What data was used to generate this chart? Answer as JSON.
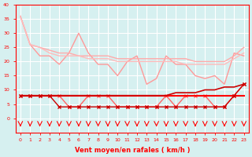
{
  "x": [
    0,
    1,
    2,
    3,
    4,
    5,
    6,
    7,
    8,
    9,
    10,
    11,
    12,
    13,
    14,
    15,
    16,
    17,
    18,
    19,
    20,
    21,
    22,
    23
  ],
  "series": [
    {
      "name": "max_rafales",
      "color": "#ff9999",
      "linewidth": 1.0,
      "marker": null,
      "values": [
        36,
        26,
        22,
        22,
        19,
        23,
        30,
        23,
        19,
        19,
        15,
        20,
        22,
        12,
        14,
        22,
        19,
        19,
        15,
        14,
        15,
        12,
        23,
        22
      ]
    },
    {
      "name": "moy_rafales_top",
      "color": "#ffaaaa",
      "linewidth": 1.0,
      "marker": null,
      "values": [
        36,
        26,
        25,
        24,
        23,
        23,
        22,
        22,
        22,
        22,
        21,
        21,
        21,
        21,
        21,
        21,
        21,
        21,
        20,
        20,
        20,
        20,
        22,
        25
      ]
    },
    {
      "name": "moy_rafales_smooth",
      "color": "#ffbbbb",
      "linewidth": 1.0,
      "marker": null,
      "values": [
        36,
        26,
        25,
        23,
        22,
        22,
        22,
        21,
        21,
        21,
        20,
        20,
        20,
        20,
        20,
        20,
        20,
        19,
        19,
        19,
        19,
        19,
        21,
        23
      ]
    },
    {
      "name": "vent_moyen_marker",
      "color": "#ff6666",
      "linewidth": 1.0,
      "marker": "x",
      "markersize": 3,
      "values": [
        8,
        8,
        8,
        8,
        8,
        4,
        4,
        8,
        8,
        8,
        4,
        4,
        4,
        4,
        4,
        8,
        4,
        8,
        8,
        8,
        4,
        4,
        8,
        12
      ]
    },
    {
      "name": "vent_moyen_flat",
      "color": "#ff0000",
      "linewidth": 1.5,
      "marker": null,
      "values": [
        8,
        8,
        8,
        8,
        8,
        8,
        8,
        8,
        8,
        8,
        8,
        8,
        8,
        8,
        8,
        8,
        8,
        8,
        8,
        8,
        8,
        8,
        8,
        8
      ]
    },
    {
      "name": "vent_moyen_trend",
      "color": "#cc0000",
      "linewidth": 1.2,
      "marker": null,
      "values": [
        8,
        8,
        8,
        8,
        8,
        8,
        8,
        8,
        8,
        8,
        8,
        8,
        8,
        8,
        8,
        8,
        9,
        9,
        9,
        10,
        10,
        11,
        11,
        12
      ]
    },
    {
      "name": "vent_min_marker",
      "color": "#cc0000",
      "linewidth": 1.0,
      "marker": "x",
      "markersize": 3,
      "values": [
        8,
        8,
        8,
        8,
        4,
        4,
        4,
        4,
        4,
        4,
        4,
        4,
        4,
        4,
        4,
        4,
        4,
        4,
        4,
        4,
        4,
        4,
        8,
        12
      ]
    }
  ],
  "wind_arrows": [
    0,
    1,
    2,
    3,
    4,
    5,
    6,
    7,
    8,
    9,
    10,
    11,
    12,
    13,
    14,
    15,
    16,
    17,
    18,
    19,
    20,
    21,
    22,
    23
  ],
  "xlabel": "Vent moyen/en rafales ( km/h )",
  "ylabel": "",
  "xlim": [
    -0.5,
    23.5
  ],
  "ylim": [
    0,
    40
  ],
  "yticks": [
    0,
    5,
    10,
    15,
    20,
    25,
    30,
    35,
    40
  ],
  "xticks": [
    0,
    1,
    2,
    3,
    4,
    5,
    6,
    7,
    8,
    9,
    10,
    11,
    12,
    13,
    14,
    15,
    16,
    17,
    18,
    19,
    20,
    21,
    22,
    23
  ],
  "bg_color": "#d6f0f0",
  "grid_color": "#ffffff",
  "axis_color": "#ff0000",
  "xlabel_color": "#ff0000",
  "tick_color": "#ff0000"
}
